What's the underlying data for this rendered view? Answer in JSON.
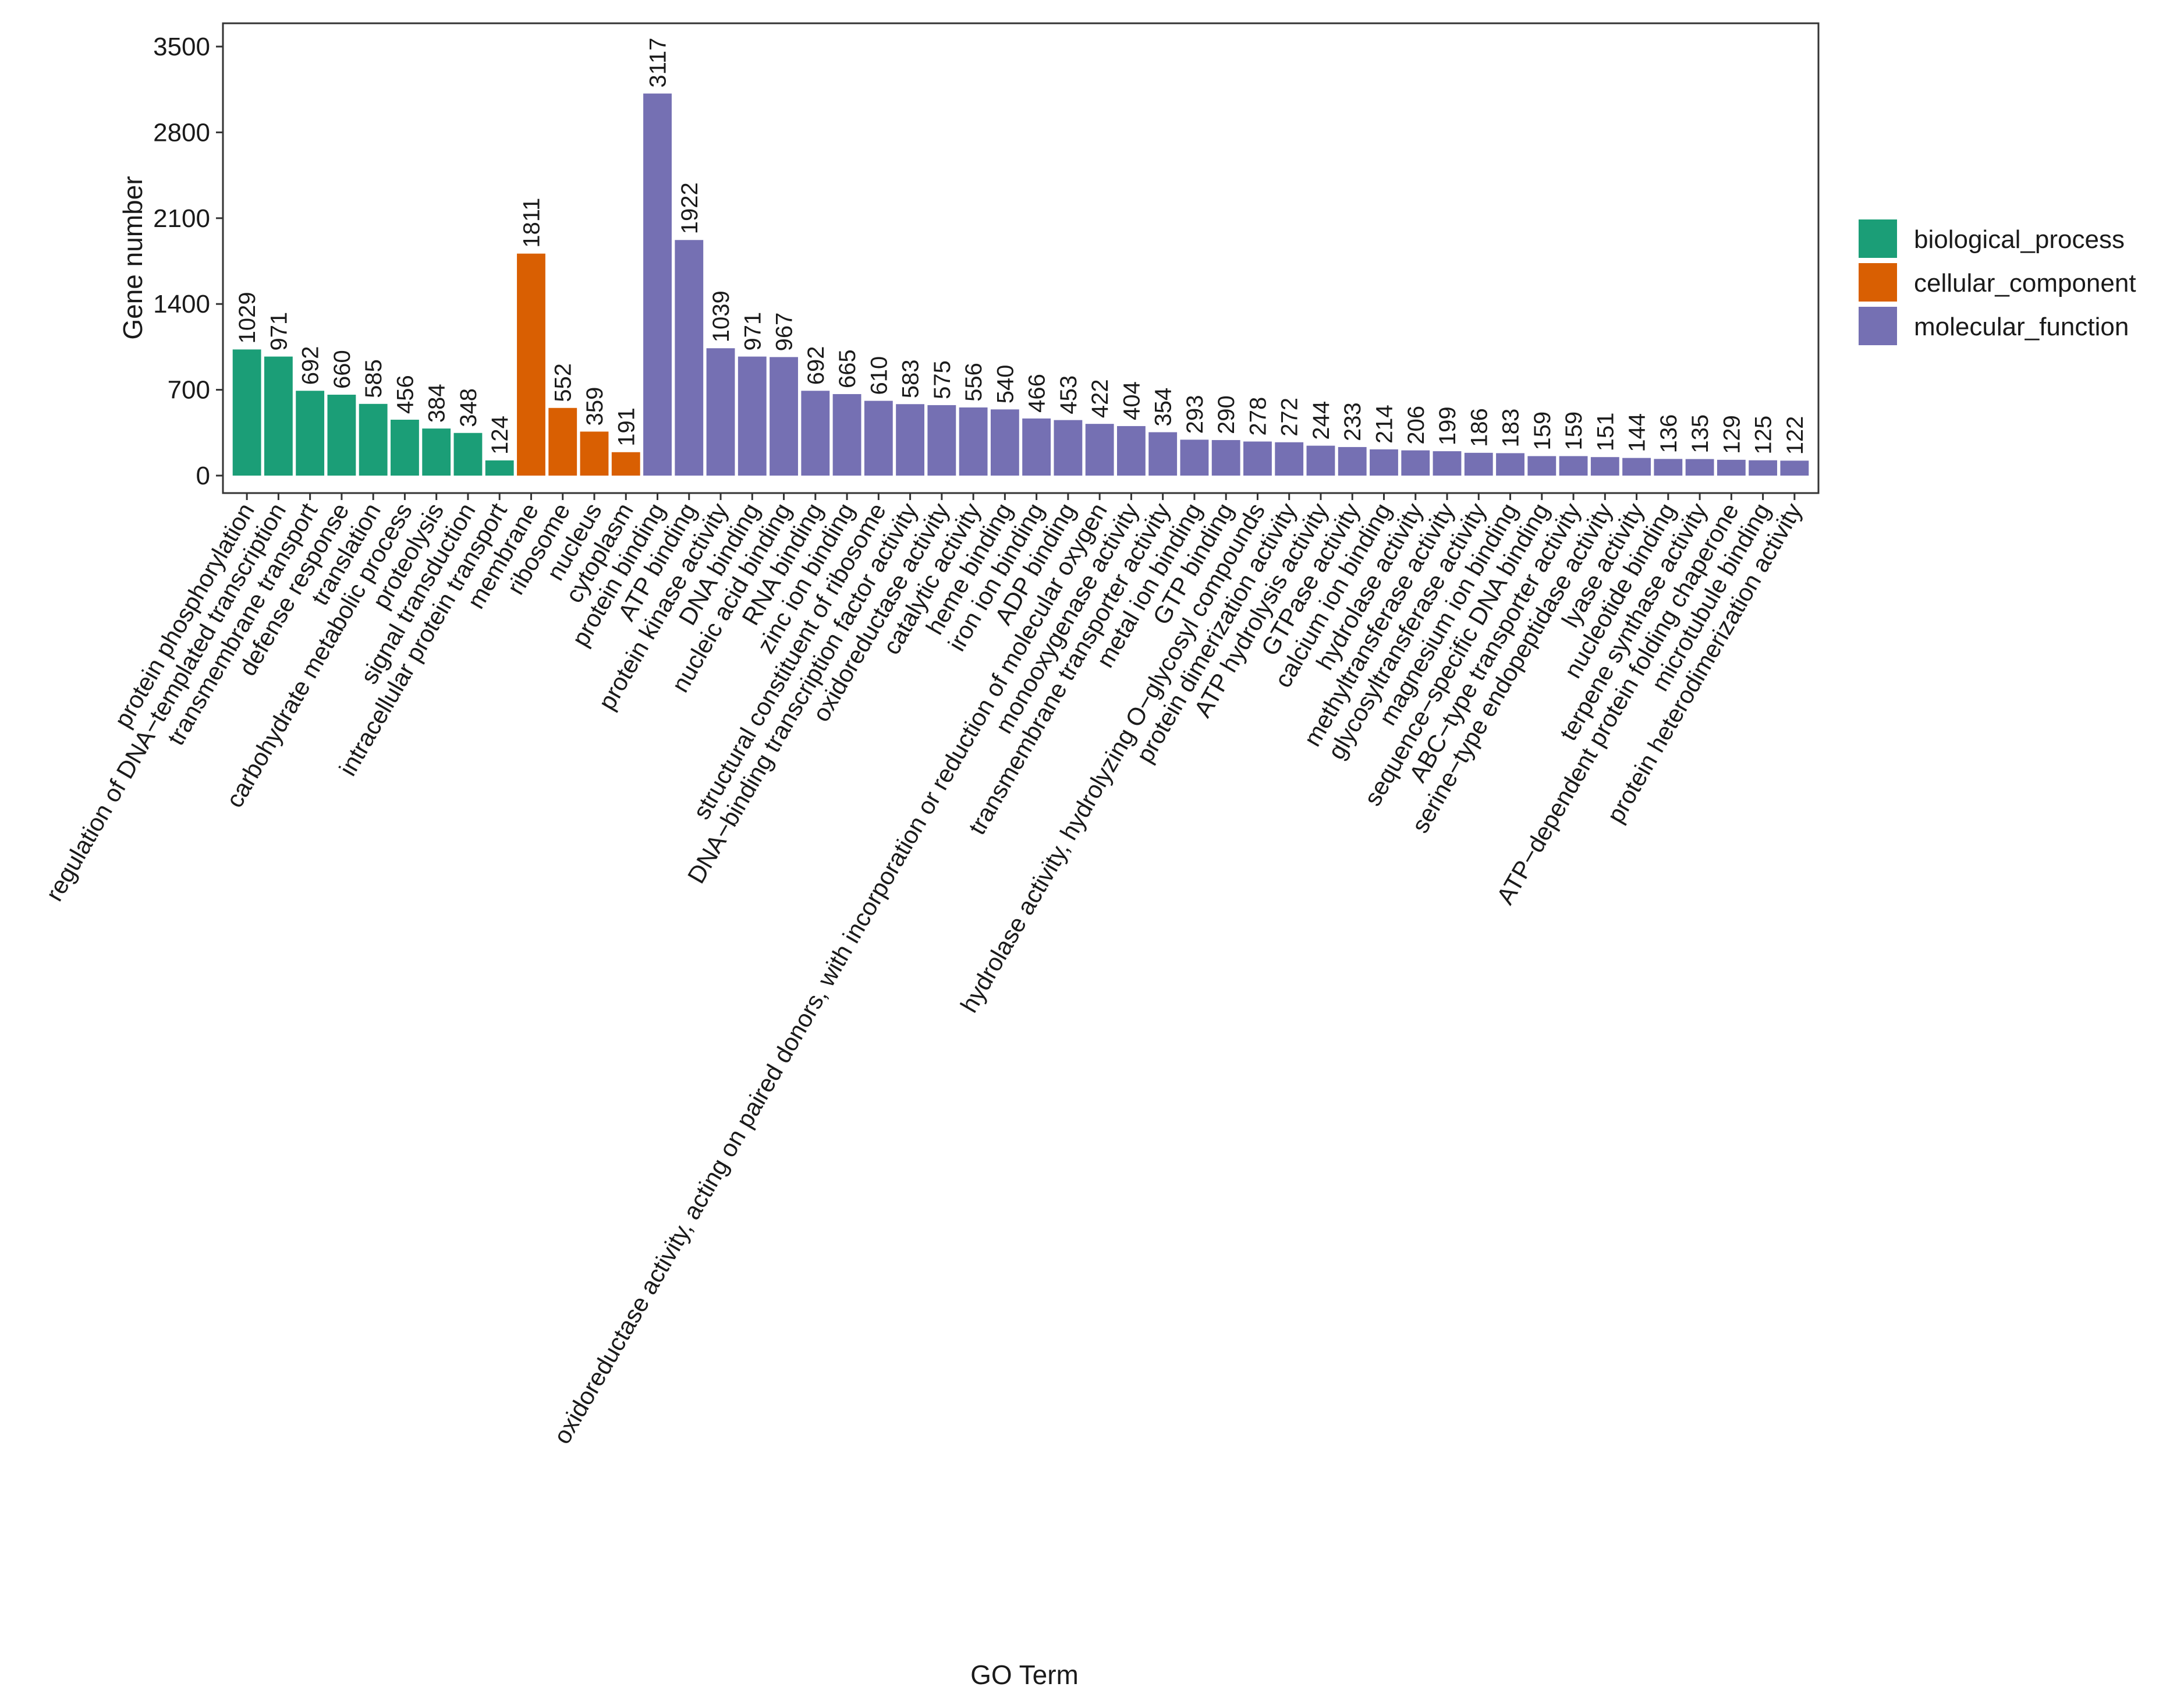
{
  "chart_data": {
    "type": "bar",
    "xlabel": "GO Term",
    "ylabel": "Gene number",
    "ylim": [
      0,
      3500
    ],
    "yticks": [
      0,
      700,
      1400,
      2100,
      2800,
      3500
    ],
    "grid": false,
    "legend_position": "right",
    "legend": [
      {
        "name": "biological_process",
        "color": "#1b9e77"
      },
      {
        "name": "cellular_component",
        "color": "#d95f02"
      },
      {
        "name": "molecular_function",
        "color": "#7570b3"
      }
    ],
    "categories": [
      "protein phosphorylation",
      "regulation of DNA−templated transcription",
      "transmembrane transport",
      "defense response",
      "translation",
      "carbohydrate metabolic process",
      "proteolysis",
      "signal transduction",
      "intracellular protein transport",
      "membrane",
      "ribosome",
      "nucleus",
      "cytoplasm",
      "protein binding",
      "ATP binding",
      "protein kinase activity",
      "DNA binding",
      "nucleic acid binding",
      "RNA binding",
      "zinc ion binding",
      "structural constituent of ribosome",
      "DNA−binding transcription factor activity",
      "oxidoreductase activity",
      "catalytic activity",
      "heme binding",
      "iron ion binding",
      "ADP binding",
      "oxidoreductase activity, acting on paired donors, with incorporation or reduction of molecular oxygen",
      "monooxygenase activity",
      "transmembrane transporter activity",
      "metal ion binding",
      "GTP binding",
      "hydrolase activity, hydrolyzing O−glycosyl compounds",
      "protein dimerization activity",
      "ATP hydrolysis activity",
      "GTPase activity",
      "calcium ion binding",
      "hydrolase activity",
      "methyltransferase activity",
      "glycosyltransferase activity",
      "magnesium ion binding",
      "sequence−specific DNA binding",
      "ABC−type transporter activity",
      "serine−type endopeptidase activity",
      "lyase activity",
      "nucleotide binding",
      "terpene synthase activity",
      "ATP−dependent protein folding chaperone",
      "microtubule binding",
      "protein heterodimerization activity"
    ],
    "values": [
      1029,
      971,
      692,
      660,
      585,
      456,
      384,
      348,
      124,
      1811,
      552,
      359,
      191,
      3117,
      1922,
      1039,
      971,
      967,
      692,
      665,
      610,
      583,
      575,
      556,
      540,
      466,
      453,
      422,
      404,
      354,
      293,
      290,
      278,
      272,
      244,
      233,
      214,
      206,
      199,
      186,
      183,
      159,
      159,
      151,
      144,
      136,
      135,
      129,
      125,
      122
    ],
    "groups": [
      0,
      0,
      0,
      0,
      0,
      0,
      0,
      0,
      0,
      1,
      1,
      1,
      1,
      2,
      2,
      2,
      2,
      2,
      2,
      2,
      2,
      2,
      2,
      2,
      2,
      2,
      2,
      2,
      2,
      2,
      2,
      2,
      2,
      2,
      2,
      2,
      2,
      2,
      2,
      2,
      2,
      2,
      2,
      2,
      2,
      2,
      2,
      2,
      2,
      2
    ]
  }
}
